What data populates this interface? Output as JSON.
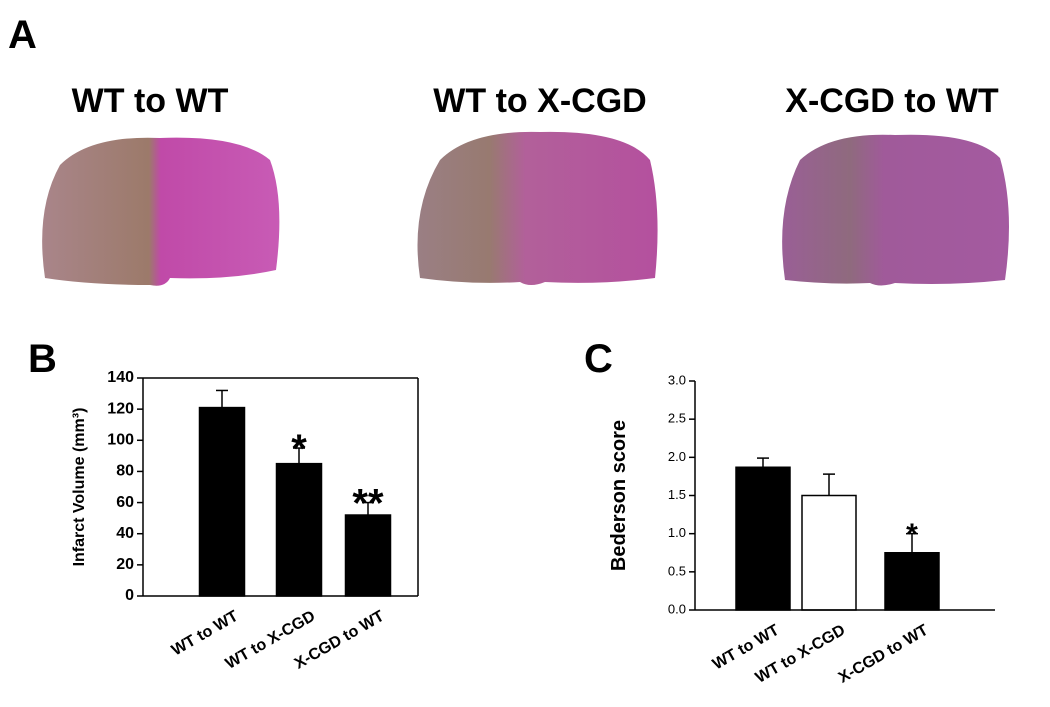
{
  "panels": {
    "a": "A",
    "b": "B",
    "c": "C"
  },
  "images": {
    "titles": [
      "WT to WT",
      "WT to X-CGD",
      "X-CGD to WT"
    ]
  },
  "chart_data": [
    {
      "type": "bar",
      "y_label": "Infarct Volume (mm³)",
      "categories": [
        "WT to WT",
        "WT to X-CGD",
        "X-CGD to WT"
      ],
      "values": [
        121,
        85,
        52
      ],
      "errors": [
        11,
        10,
        8
      ],
      "colors": [
        "#000000",
        "#000000",
        "#000000"
      ],
      "ylim": [
        0,
        140
      ],
      "yticks": [
        0,
        20,
        40,
        60,
        80,
        100,
        120,
        140
      ],
      "annotations": [
        {
          "text": "*",
          "at": "WT to X-CGD"
        },
        {
          "text": "**",
          "at": "X-CGD to WT"
        }
      ]
    },
    {
      "type": "bar",
      "y_label": "Bederson score",
      "categories": [
        "WT to WT",
        "WT to X-CGD",
        "X-CGD to WT"
      ],
      "values": [
        1.87,
        1.5,
        0.75
      ],
      "errors": [
        0.12,
        0.28,
        0.25
      ],
      "colors": [
        "#000000",
        "#ffffff",
        "#000000"
      ],
      "ylim": [
        0,
        3
      ],
      "yticks": [
        {
          "value": 0,
          "label": "0.0"
        },
        {
          "value": 0.5,
          "label": "0.5"
        },
        {
          "value": 1,
          "label": "1.0"
        },
        {
          "value": 1.5,
          "label": "1.5"
        },
        {
          "value": 2,
          "label": "2.0"
        },
        {
          "value": 2.5,
          "label": "2.5"
        },
        {
          "value": 3,
          "label": "3.0"
        }
      ],
      "annotations": [
        {
          "text": "*",
          "at": "X-CGD to WT"
        }
      ]
    }
  ]
}
